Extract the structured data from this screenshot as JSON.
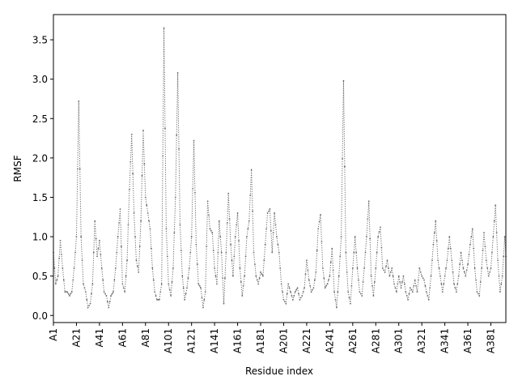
{
  "chart_data": {
    "type": "line",
    "title": "",
    "xlabel": "Residue index",
    "ylabel": "RMSF",
    "xlim": [
      1,
      394
    ],
    "ylim": [
      -0.09,
      3.82
    ],
    "grid": false,
    "line_color": "#6b6b6b",
    "line_style": "dotted",
    "marker": "point",
    "x_ticks": [
      {
        "index": 1,
        "label": "A1"
      },
      {
        "index": 21,
        "label": "A21"
      },
      {
        "index": 41,
        "label": "A41"
      },
      {
        "index": 61,
        "label": "A61"
      },
      {
        "index": 81,
        "label": "A81"
      },
      {
        "index": 101,
        "label": "A101"
      },
      {
        "index": 121,
        "label": "A121"
      },
      {
        "index": 141,
        "label": "A141"
      },
      {
        "index": 161,
        "label": "A161"
      },
      {
        "index": 181,
        "label": "A181"
      },
      {
        "index": 201,
        "label": "A201"
      },
      {
        "index": 221,
        "label": "A221"
      },
      {
        "index": 241,
        "label": "A241"
      },
      {
        "index": 261,
        "label": "A261"
      },
      {
        "index": 281,
        "label": "A281"
      },
      {
        "index": 301,
        "label": "A301"
      },
      {
        "index": 321,
        "label": "A321"
      },
      {
        "index": 341,
        "label": "A341"
      },
      {
        "index": 361,
        "label": "A361"
      },
      {
        "index": 381,
        "label": "A381"
      }
    ],
    "y_ticks": [
      {
        "value": 0.0,
        "label": "0.0"
      },
      {
        "value": 0.5,
        "label": "0.5"
      },
      {
        "value": 1.0,
        "label": "1.0"
      },
      {
        "value": 1.5,
        "label": "1.5"
      },
      {
        "value": 2.0,
        "label": "2.0"
      },
      {
        "value": 2.5,
        "label": "2.5"
      },
      {
        "value": 3.0,
        "label": "3.0"
      },
      {
        "value": 3.5,
        "label": "3.5"
      }
    ],
    "profile": [
      [
        1,
        0.8
      ],
      [
        3,
        0.4
      ],
      [
        5,
        0.5
      ],
      [
        7,
        0.95
      ],
      [
        9,
        0.6
      ],
      [
        11,
        0.3
      ],
      [
        13,
        0.3
      ],
      [
        15,
        0.25
      ],
      [
        17,
        0.3
      ],
      [
        19,
        0.6
      ],
      [
        21,
        1.0
      ],
      [
        23,
        2.72
      ],
      [
        25,
        1.0
      ],
      [
        27,
        0.4
      ],
      [
        29,
        0.3
      ],
      [
        31,
        0.1
      ],
      [
        33,
        0.15
      ],
      [
        35,
        0.4
      ],
      [
        37,
        1.2
      ],
      [
        39,
        0.75
      ],
      [
        41,
        0.95
      ],
      [
        43,
        0.6
      ],
      [
        45,
        0.3
      ],
      [
        47,
        0.25
      ],
      [
        49,
        0.1
      ],
      [
        51,
        0.25
      ],
      [
        53,
        0.3
      ],
      [
        55,
        0.6
      ],
      [
        57,
        1.0
      ],
      [
        59,
        1.35
      ],
      [
        61,
        0.4
      ],
      [
        63,
        0.3
      ],
      [
        65,
        0.7
      ],
      [
        67,
        1.6
      ],
      [
        69,
        2.3
      ],
      [
        71,
        1.3
      ],
      [
        73,
        0.7
      ],
      [
        75,
        0.55
      ],
      [
        77,
        1.2
      ],
      [
        79,
        2.35
      ],
      [
        81,
        1.5
      ],
      [
        83,
        1.3
      ],
      [
        85,
        1.1
      ],
      [
        87,
        0.6
      ],
      [
        89,
        0.3
      ],
      [
        91,
        0.2
      ],
      [
        93,
        0.2
      ],
      [
        95,
        0.4
      ],
      [
        97,
        3.65
      ],
      [
        99,
        1.1
      ],
      [
        101,
        0.4
      ],
      [
        103,
        0.25
      ],
      [
        105,
        0.6
      ],
      [
        107,
        1.5
      ],
      [
        109,
        3.08
      ],
      [
        111,
        1.15
      ],
      [
        113,
        0.5
      ],
      [
        115,
        0.2
      ],
      [
        117,
        0.35
      ],
      [
        119,
        0.6
      ],
      [
        121,
        1.0
      ],
      [
        123,
        2.22
      ],
      [
        125,
        0.9
      ],
      [
        127,
        0.4
      ],
      [
        129,
        0.35
      ],
      [
        131,
        0.1
      ],
      [
        133,
        0.3
      ],
      [
        135,
        1.45
      ],
      [
        137,
        1.1
      ],
      [
        139,
        1.05
      ],
      [
        141,
        0.6
      ],
      [
        143,
        0.4
      ],
      [
        145,
        1.2
      ],
      [
        147,
        0.8
      ],
      [
        149,
        0.15
      ],
      [
        151,
        0.8
      ],
      [
        153,
        1.55
      ],
      [
        155,
        0.9
      ],
      [
        157,
        0.5
      ],
      [
        159,
        1.0
      ],
      [
        161,
        1.3
      ],
      [
        163,
        0.6
      ],
      [
        165,
        0.25
      ],
      [
        167,
        0.5
      ],
      [
        169,
        1.0
      ],
      [
        171,
        1.2
      ],
      [
        173,
        1.85
      ],
      [
        175,
        0.8
      ],
      [
        177,
        0.5
      ],
      [
        179,
        0.4
      ],
      [
        181,
        0.55
      ],
      [
        183,
        0.5
      ],
      [
        185,
        0.9
      ],
      [
        187,
        1.3
      ],
      [
        189,
        1.35
      ],
      [
        191,
        0.8
      ],
      [
        193,
        1.3
      ],
      [
        195,
        1.0
      ],
      [
        197,
        0.8
      ],
      [
        199,
        0.4
      ],
      [
        201,
        0.2
      ],
      [
        203,
        0.15
      ],
      [
        205,
        0.4
      ],
      [
        207,
        0.3
      ],
      [
        209,
        0.2
      ],
      [
        211,
        0.3
      ],
      [
        213,
        0.35
      ],
      [
        215,
        0.2
      ],
      [
        217,
        0.25
      ],
      [
        219,
        0.35
      ],
      [
        221,
        0.7
      ],
      [
        223,
        0.45
      ],
      [
        225,
        0.3
      ],
      [
        227,
        0.35
      ],
      [
        229,
        0.55
      ],
      [
        231,
        1.1
      ],
      [
        233,
        1.28
      ],
      [
        235,
        0.6
      ],
      [
        237,
        0.35
      ],
      [
        239,
        0.4
      ],
      [
        241,
        0.5
      ],
      [
        243,
        0.85
      ],
      [
        245,
        0.3
      ],
      [
        247,
        0.1
      ],
      [
        249,
        0.5
      ],
      [
        251,
        1.0
      ],
      [
        253,
        2.98
      ],
      [
        255,
        0.8
      ],
      [
        257,
        0.3
      ],
      [
        259,
        0.15
      ],
      [
        261,
        0.6
      ],
      [
        263,
        1.0
      ],
      [
        265,
        0.6
      ],
      [
        267,
        0.3
      ],
      [
        269,
        0.25
      ],
      [
        271,
        0.6
      ],
      [
        273,
        1.0
      ],
      [
        275,
        1.45
      ],
      [
        277,
        0.5
      ],
      [
        279,
        0.25
      ],
      [
        281,
        0.6
      ],
      [
        283,
        1.0
      ],
      [
        285,
        1.12
      ],
      [
        287,
        0.6
      ],
      [
        289,
        0.55
      ],
      [
        291,
        0.7
      ],
      [
        293,
        0.5
      ],
      [
        295,
        0.6
      ],
      [
        297,
        0.4
      ],
      [
        299,
        0.3
      ],
      [
        301,
        0.5
      ],
      [
        303,
        0.35
      ],
      [
        305,
        0.5
      ],
      [
        307,
        0.3
      ],
      [
        309,
        0.2
      ],
      [
        311,
        0.35
      ],
      [
        313,
        0.3
      ],
      [
        315,
        0.45
      ],
      [
        317,
        0.3
      ],
      [
        319,
        0.6
      ],
      [
        321,
        0.5
      ],
      [
        323,
        0.45
      ],
      [
        325,
        0.3
      ],
      [
        327,
        0.2
      ],
      [
        329,
        0.5
      ],
      [
        331,
        0.9
      ],
      [
        333,
        1.2
      ],
      [
        335,
        0.7
      ],
      [
        337,
        0.5
      ],
      [
        339,
        0.3
      ],
      [
        341,
        0.5
      ],
      [
        343,
        0.7
      ],
      [
        345,
        1.0
      ],
      [
        347,
        0.7
      ],
      [
        349,
        0.4
      ],
      [
        351,
        0.3
      ],
      [
        353,
        0.5
      ],
      [
        355,
        0.8
      ],
      [
        357,
        0.6
      ],
      [
        359,
        0.5
      ],
      [
        361,
        0.65
      ],
      [
        363,
        0.9
      ],
      [
        365,
        1.1
      ],
      [
        367,
        0.6
      ],
      [
        369,
        0.3
      ],
      [
        371,
        0.25
      ],
      [
        373,
        0.6
      ],
      [
        375,
        1.05
      ],
      [
        377,
        0.7
      ],
      [
        379,
        0.5
      ],
      [
        381,
        0.6
      ],
      [
        383,
        1.0
      ],
      [
        385,
        1.4
      ],
      [
        387,
        0.7
      ],
      [
        389,
        0.3
      ],
      [
        391,
        0.5
      ],
      [
        393,
        1.0
      ],
      [
        394,
        0.75
      ]
    ]
  }
}
